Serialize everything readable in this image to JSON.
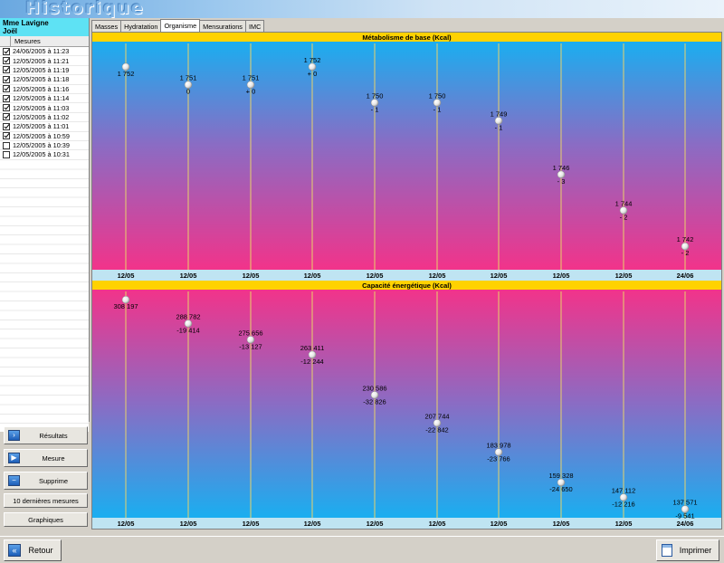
{
  "window": {
    "title": "Historique"
  },
  "patient": {
    "line1": "Mme Lavigne",
    "line2": "Joël"
  },
  "measures_list": {
    "header": "Mesures",
    "items": [
      {
        "label": "24/06/2005 à 11:23",
        "checked": true
      },
      {
        "label": "12/05/2005 à 11:21",
        "checked": true
      },
      {
        "label": "12/05/2005 à 11:19",
        "checked": true
      },
      {
        "label": "12/05/2005 à 11:18",
        "checked": true
      },
      {
        "label": "12/05/2005 à 11:16",
        "checked": true
      },
      {
        "label": "12/05/2005 à 11:14",
        "checked": true
      },
      {
        "label": "12/05/2005 à 11:03",
        "checked": true
      },
      {
        "label": "12/05/2005 à 11:02",
        "checked": true
      },
      {
        "label": "12/05/2005 à 11:01",
        "checked": true
      },
      {
        "label": "12/05/2005 à 10:59",
        "checked": true
      },
      {
        "label": "12/05/2005 à 10:39",
        "checked": false
      },
      {
        "label": "12/05/2005 à 10:31",
        "checked": false
      }
    ]
  },
  "actions": {
    "results": "Résultats",
    "measure": "Mesure",
    "delete": "Supprime",
    "last10": "10 dernières mesures",
    "charts": "Graphiques"
  },
  "tabs": [
    {
      "label": "Masses",
      "active": false
    },
    {
      "label": "Hydratation",
      "active": false
    },
    {
      "label": "Organisme",
      "active": true
    },
    {
      "label": "Mensurations",
      "active": false
    },
    {
      "label": "IMC",
      "active": false
    }
  ],
  "bottom": {
    "back": "Retour",
    "print": "Imprimer"
  },
  "colors": {
    "header_yellow": "#ffd200",
    "top_blue": "#1aaef0",
    "magenta": "#f2338a",
    "axis_band": "#bfe4f2",
    "gridline": "#e8d26a",
    "patient_band": "#5ee2f4"
  },
  "icons": {
    "results": "chevron-right-icon",
    "measure": "play-icon",
    "delete": "minus-icon",
    "back": "double-chevron-left-icon",
    "print": "document-icon"
  },
  "chart_data": [
    {
      "type": "line",
      "title": "Métabolisme de base (Kcal)",
      "categories": [
        "12/05",
        "12/05",
        "12/05",
        "12/05",
        "12/05",
        "12/05",
        "12/05",
        "12/05",
        "12/05",
        "24/06"
      ],
      "values": [
        1752,
        1751,
        1751,
        1752,
        1750,
        1750,
        1749,
        1746,
        1744,
        1742
      ],
      "value_labels": [
        "1 752",
        "1 751",
        "1 751",
        "1 752",
        "1 750",
        "1 750",
        "1 749",
        "1 746",
        "1 744",
        "1 742"
      ],
      "delta_labels": [
        "",
        "0",
        "+ 0",
        "+ 0",
        "- 1",
        "- 1",
        "- 1",
        "- 3",
        "- 2",
        "- 2"
      ],
      "ylim": [
        1741,
        1753
      ]
    },
    {
      "type": "line",
      "title": "Capacité énergétique (Kcal)",
      "categories": [
        "12/05",
        "12/05",
        "12/05",
        "12/05",
        "12/05",
        "12/05",
        "12/05",
        "12/05",
        "12/05",
        "24/06"
      ],
      "values": [
        308197,
        288782,
        275656,
        263411,
        230586,
        207744,
        183978,
        159328,
        147112,
        137571
      ],
      "value_labels": [
        "308 197",
        "288 782",
        "275 656",
        "263 411",
        "230 586",
        "207 744",
        "183 978",
        "159 328",
        "147 112",
        "137 571"
      ],
      "delta_labels": [
        "",
        "-19 414",
        "-13 127",
        "-12 244",
        "-32 826",
        "-22 842",
        "-23 766",
        "-24 650",
        "-12 216",
        "-9 541"
      ],
      "ylim": [
        135000,
        312000
      ]
    }
  ]
}
